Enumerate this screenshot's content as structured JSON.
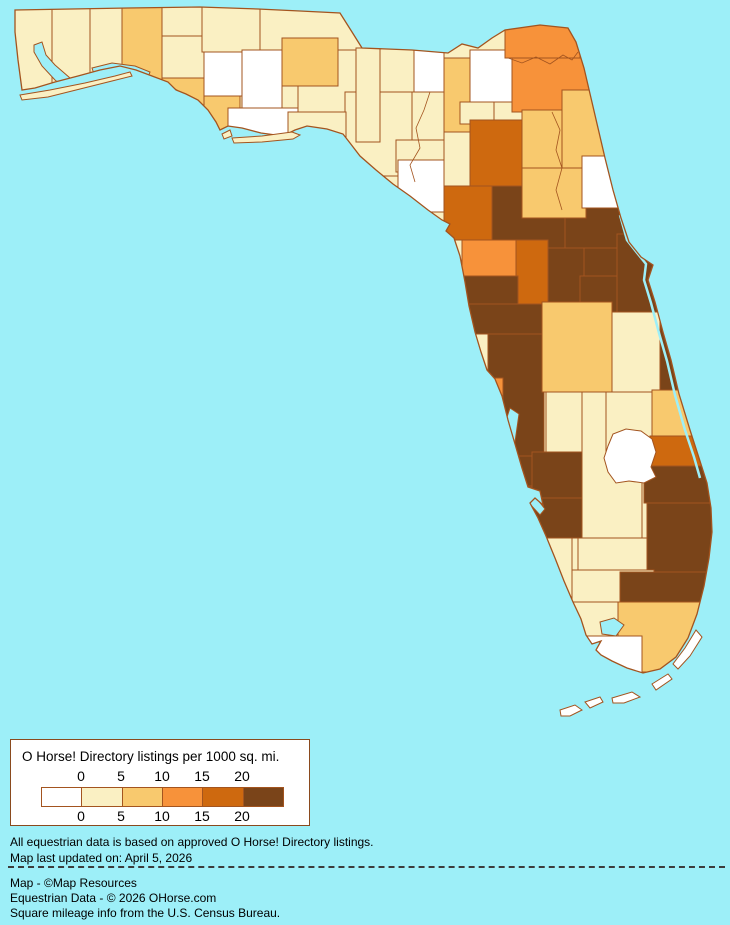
{
  "map": {
    "state_name": "Florida",
    "water_color": "#9DEFF8",
    "border_color": "#A3541F",
    "land_base_color": "#FAF0C3",
    "lake_color": "#FFFFFF",
    "palette": [
      "#FFFFFF",
      "#FAF0C3",
      "#F8C96E",
      "#F7923A",
      "#CE690F",
      "#7A4419"
    ],
    "counties": [
      {
        "id": "bay",
        "name": "Bay",
        "bucket": 2
      },
      {
        "id": "walton",
        "name": "Walton",
        "bucket": 2
      },
      {
        "id": "okaloosa",
        "name": "Okaloosa",
        "bucket": 1
      },
      {
        "id": "santa-rosa",
        "name": "Santa Rosa",
        "bucket": 1
      },
      {
        "id": "escambia",
        "name": "Escambia",
        "bucket": 1
      },
      {
        "id": "holmes",
        "name": "Holmes",
        "bucket": 1
      },
      {
        "id": "washington",
        "name": "Washington",
        "bucket": 1
      },
      {
        "id": "jackson",
        "name": "Jackson",
        "bucket": 1
      },
      {
        "id": "calhoun",
        "name": "Calhoun",
        "bucket": 0
      },
      {
        "id": "gulf",
        "name": "Gulf",
        "bucket": 2
      },
      {
        "id": "liberty",
        "name": "Liberty",
        "bucket": 0
      },
      {
        "id": "franklin",
        "name": "Franklin",
        "bucket": 0
      },
      {
        "id": "gadsden",
        "name": "Gadsden",
        "bucket": 2
      },
      {
        "id": "leon",
        "name": "Leon",
        "bucket": 1
      },
      {
        "id": "taylor",
        "name": "Taylor",
        "bucket": 1
      },
      {
        "id": "jefferson",
        "name": "Jefferson",
        "bucket": 1
      },
      {
        "id": "wakulla",
        "name": "Wakulla",
        "bucket": 1
      },
      {
        "id": "madison",
        "name": "Madison",
        "bucket": 1
      },
      {
        "id": "hamilton",
        "name": "Hamilton",
        "bucket": 0
      },
      {
        "id": "suwannee",
        "name": "Suwannee",
        "bucket": 1
      },
      {
        "id": "columbia",
        "name": "Columbia",
        "bucket": 2
      },
      {
        "id": "baker",
        "name": "Baker",
        "bucket": 0
      },
      {
        "id": "union",
        "name": "Union",
        "bucket": 1
      },
      {
        "id": "bradford",
        "name": "Bradford",
        "bucket": 1
      },
      {
        "id": "nassau",
        "name": "Nassau",
        "bucket": 3
      },
      {
        "id": "duval",
        "name": "Duval",
        "bucket": 3
      },
      {
        "id": "lafayette",
        "name": "Lafayette",
        "bucket": 1
      },
      {
        "id": "dixie",
        "name": "Dixie",
        "bucket": 0
      },
      {
        "id": "gilchrist",
        "name": "Gilchrist",
        "bucket": 1
      },
      {
        "id": "alachua",
        "name": "Alachua",
        "bucket": 4
      },
      {
        "id": "levy",
        "name": "Levy",
        "bucket": 4
      },
      {
        "id": "marion",
        "name": "Marion",
        "bucket": 5
      },
      {
        "id": "volusia",
        "name": "Volusia",
        "bucket": 5
      },
      {
        "id": "st-johns",
        "name": "St. Johns",
        "bucket": 2
      },
      {
        "id": "clay",
        "name": "Clay",
        "bucket": 2
      },
      {
        "id": "putnam",
        "name": "Putnam",
        "bucket": 2
      },
      {
        "id": "flagler",
        "name": "Flagler",
        "bucket": 0
      },
      {
        "id": "citrus",
        "name": "Citrus",
        "bucket": 3
      },
      {
        "id": "sumter",
        "name": "Sumter",
        "bucket": 4
      },
      {
        "id": "lake",
        "name": "Lake",
        "bucket": 5
      },
      {
        "id": "seminole",
        "name": "Seminole",
        "bucket": 5
      },
      {
        "id": "orange",
        "name": "Orange",
        "bucket": 5
      },
      {
        "id": "brevard",
        "name": "Brevard",
        "bucket": 5
      },
      {
        "id": "osceola",
        "name": "Osceola",
        "bucket": 1
      },
      {
        "id": "hernando",
        "name": "Hernando",
        "bucket": 5
      },
      {
        "id": "pasco",
        "name": "Pasco",
        "bucket": 5
      },
      {
        "id": "hillsborough",
        "name": "Hillsborough",
        "bucket": 5
      },
      {
        "id": "polk",
        "name": "Polk",
        "bucket": 2
      },
      {
        "id": "pinellas",
        "name": "Pinellas",
        "bucket": 3
      },
      {
        "id": "manatee",
        "name": "Manatee",
        "bucket": 5
      },
      {
        "id": "hardee",
        "name": "Hardee",
        "bucket": 1
      },
      {
        "id": "sarasota",
        "name": "Sarasota",
        "bucket": 5
      },
      {
        "id": "desoto",
        "name": "DeSoto",
        "bucket": 5
      },
      {
        "id": "charlotte",
        "name": "Charlotte",
        "bucket": 5
      },
      {
        "id": "highlands",
        "name": "Highlands",
        "bucket": 1
      },
      {
        "id": "okeechobee",
        "name": "Okeechobee",
        "bucket": 1
      },
      {
        "id": "indian-river",
        "name": "Indian River",
        "bucket": 2
      },
      {
        "id": "st-lucie",
        "name": "St. Lucie",
        "bucket": 4
      },
      {
        "id": "martin",
        "name": "Martin",
        "bucket": 5
      },
      {
        "id": "glades",
        "name": "Glades",
        "bucket": 1
      },
      {
        "id": "palm-beach",
        "name": "Palm Beach",
        "bucket": 5
      },
      {
        "id": "hendry",
        "name": "Hendry",
        "bucket": 1
      },
      {
        "id": "lee",
        "name": "Lee",
        "bucket": 1
      },
      {
        "id": "broward",
        "name": "Broward",
        "bucket": 5
      },
      {
        "id": "collier",
        "name": "Collier",
        "bucket": 1
      },
      {
        "id": "miami-dade",
        "name": "Miami-Dade",
        "bucket": 2
      },
      {
        "id": "monroe",
        "name": "Monroe",
        "bucket": 0
      }
    ]
  },
  "legend": {
    "title": "O Horse! Directory listings per 1000 sq. mi.",
    "ticks_top": [
      "0",
      "5",
      "10",
      "15",
      "20"
    ],
    "ticks_bottom": [
      "0",
      "5",
      "10",
      "15",
      "20"
    ],
    "swatches": [
      "#FFFFFF",
      "#FAF0C3",
      "#F8C96E",
      "#F7923A",
      "#CE690F",
      "#7A4419"
    ]
  },
  "footer": {
    "note1": "All equestrian data is based on approved O Horse! Directory listings.",
    "note2": "Map last updated on: April 5, 2026",
    "credit1": "Map - ©Map Resources",
    "credit2": "Equestrian Data - © 2026 OHorse.com",
    "credit3": "Square mileage info from the U.S. Census Bureau."
  }
}
